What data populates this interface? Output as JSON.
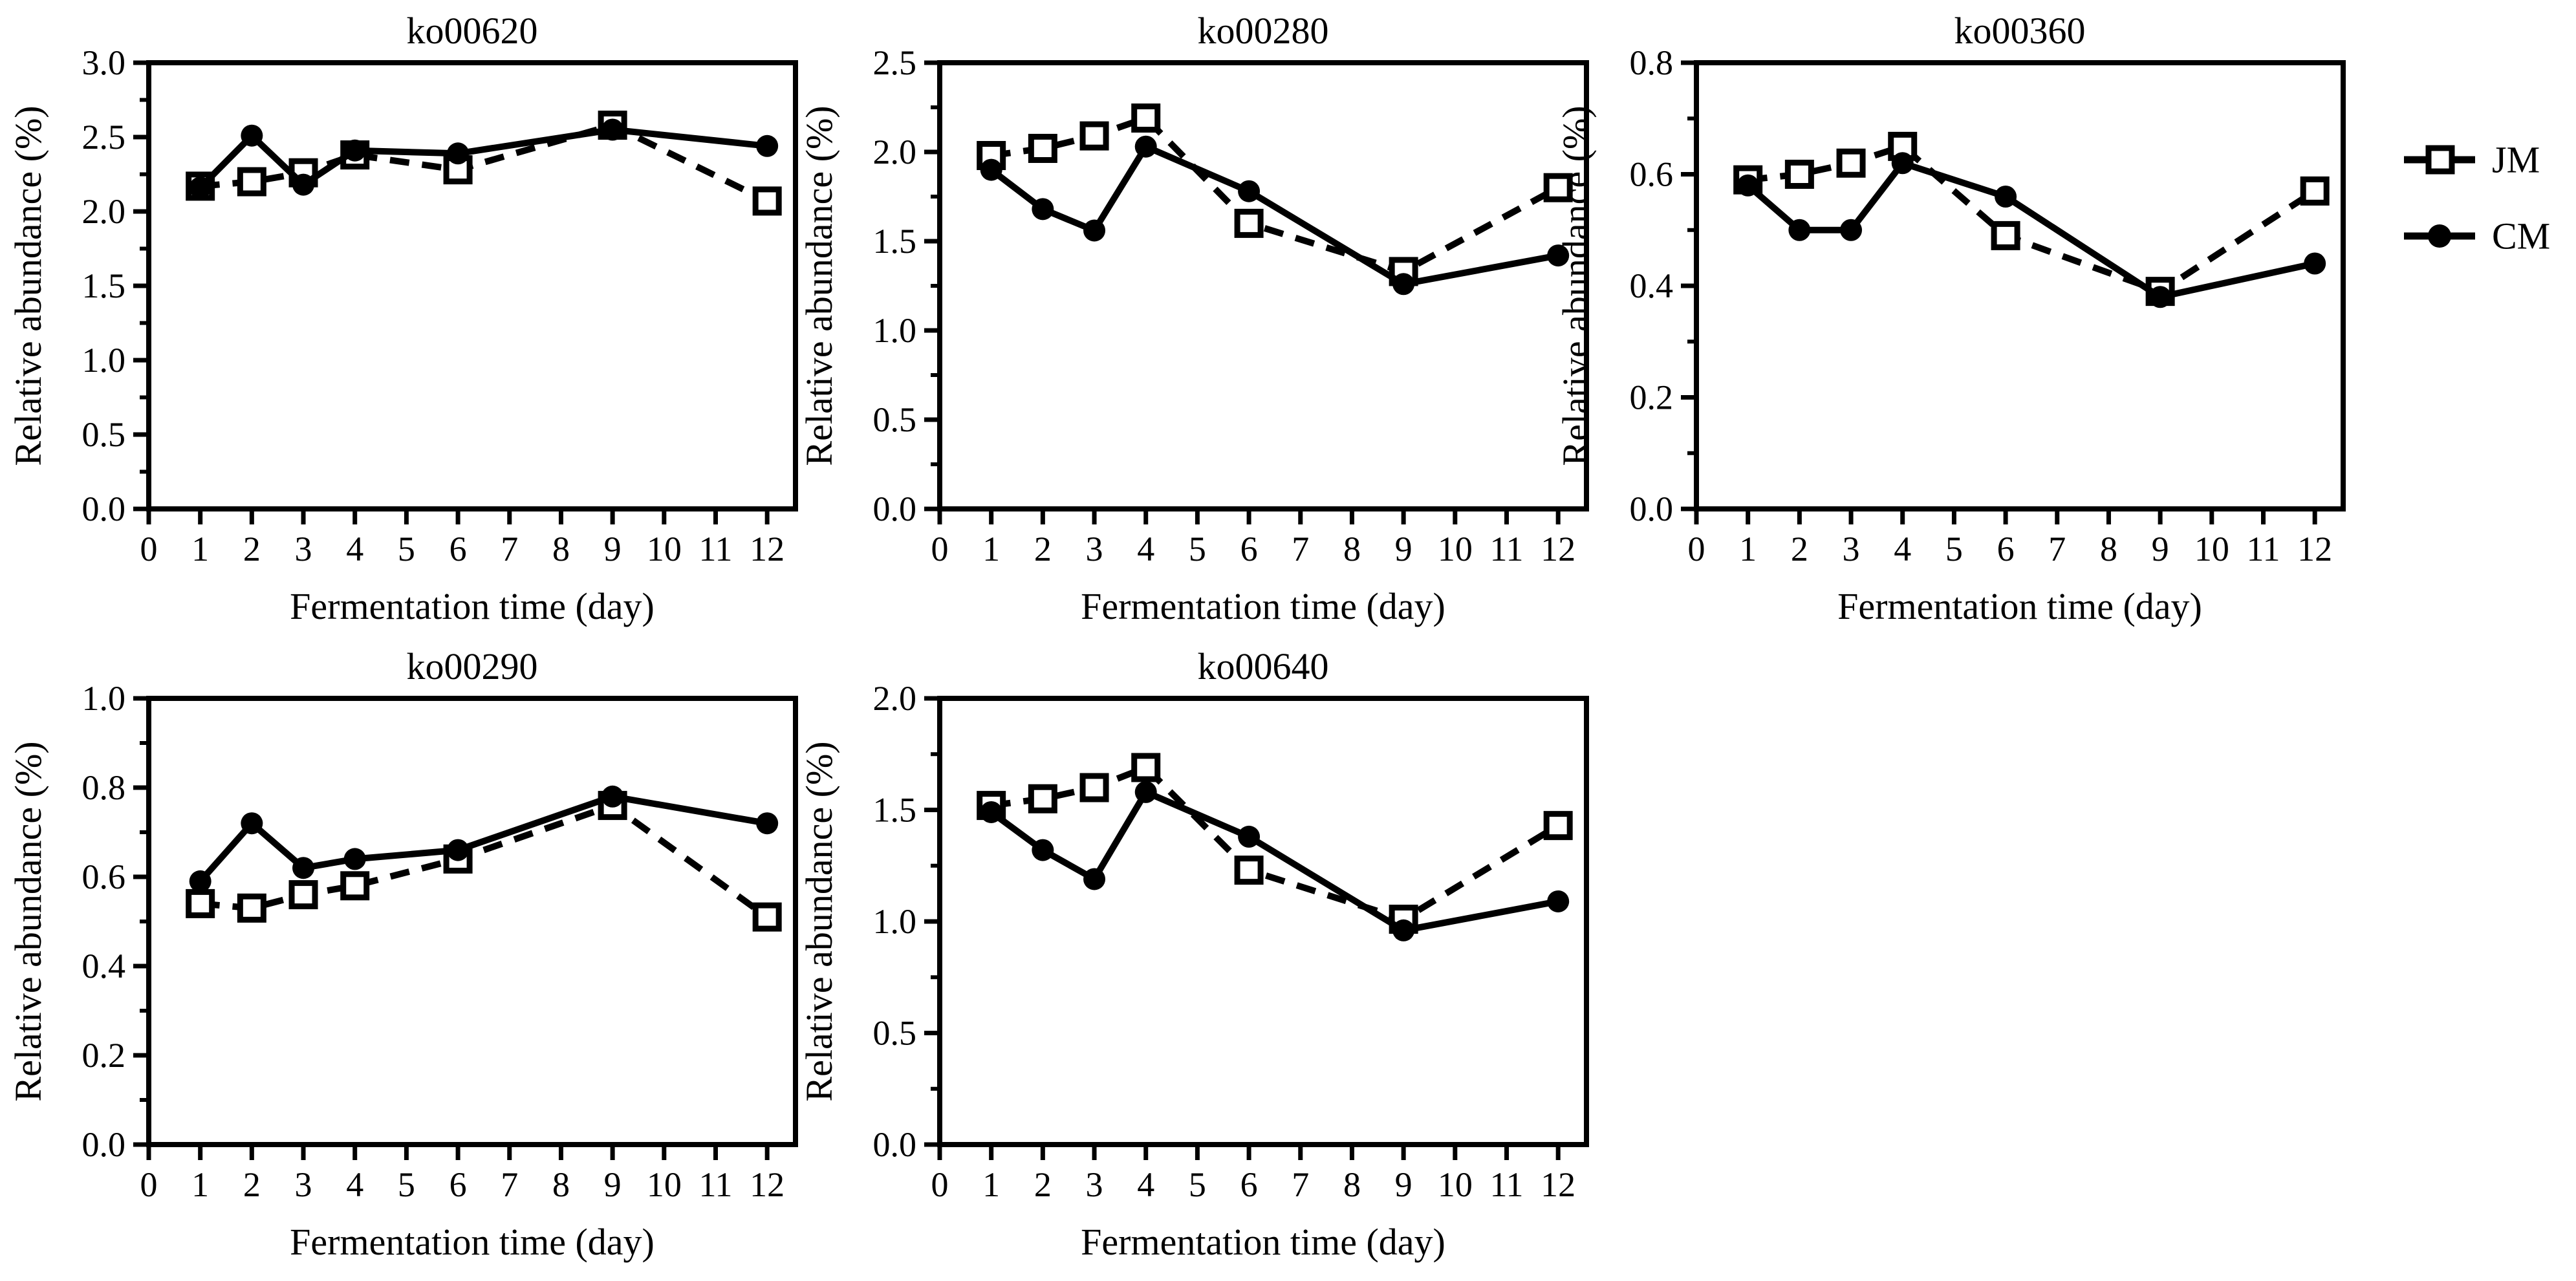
{
  "figure": {
    "background": "#ffffff",
    "ink_color": "#000000"
  },
  "legend": {
    "items": [
      {
        "label": "JM",
        "marker": "open-square",
        "line_style": "dashed"
      },
      {
        "label": "CM",
        "marker": "filled-circle",
        "line_style": "solid"
      }
    ]
  },
  "chart_data": [
    {
      "type": "line",
      "title": "ko00620",
      "xlabel": "Fermentation time (day)",
      "ylabel": "Relative abundance (%)",
      "x": [
        1,
        2,
        3,
        4,
        6,
        9,
        12
      ],
      "xticks": [
        0,
        1,
        2,
        3,
        4,
        5,
        6,
        7,
        8,
        9,
        10,
        11,
        12
      ],
      "xlim": [
        0,
        12.55
      ],
      "ylim": [
        0,
        3.0
      ],
      "ytick_step": 0.5,
      "grid": false,
      "series": [
        {
          "name": "JM",
          "marker": "open-square",
          "line_style": "dashed",
          "values": [
            2.17,
            2.2,
            2.26,
            2.38,
            2.28,
            2.58,
            2.07
          ]
        },
        {
          "name": "CM",
          "marker": "filled-circle",
          "line_style": "solid",
          "values": [
            2.16,
            2.51,
            2.18,
            2.41,
            2.39,
            2.55,
            2.44
          ]
        }
      ]
    },
    {
      "type": "line",
      "title": "ko00280",
      "xlabel": "Fermentation time (day)",
      "ylabel": "Relative abundance (%)",
      "x": [
        1,
        2,
        3,
        4,
        6,
        9,
        12
      ],
      "xticks": [
        0,
        1,
        2,
        3,
        4,
        5,
        6,
        7,
        8,
        9,
        10,
        11,
        12
      ],
      "xlim": [
        0,
        12.55
      ],
      "ylim": [
        0,
        2.5
      ],
      "ytick_step": 0.5,
      "grid": false,
      "series": [
        {
          "name": "JM",
          "marker": "open-square",
          "line_style": "dashed",
          "values": [
            1.98,
            2.02,
            2.09,
            2.19,
            1.6,
            1.33,
            1.8
          ]
        },
        {
          "name": "CM",
          "marker": "filled-circle",
          "line_style": "solid",
          "values": [
            1.9,
            1.68,
            1.56,
            2.03,
            1.78,
            1.26,
            1.42
          ]
        }
      ]
    },
    {
      "type": "line",
      "title": "ko00360",
      "xlabel": "Fermentation time (day)",
      "ylabel": "Relative abundance (%)",
      "x": [
        1,
        2,
        3,
        4,
        6,
        9,
        12
      ],
      "xticks": [
        0,
        1,
        2,
        3,
        4,
        5,
        6,
        7,
        8,
        9,
        10,
        11,
        12
      ],
      "xlim": [
        0,
        12.55
      ],
      "ylim": [
        0,
        0.8
      ],
      "ytick_step": 0.2,
      "grid": false,
      "series": [
        {
          "name": "JM",
          "marker": "open-square",
          "line_style": "dashed",
          "values": [
            0.59,
            0.6,
            0.62,
            0.65,
            0.49,
            0.39,
            0.57
          ]
        },
        {
          "name": "CM",
          "marker": "filled-circle",
          "line_style": "solid",
          "values": [
            0.58,
            0.5,
            0.5,
            0.62,
            0.56,
            0.38,
            0.44
          ]
        }
      ]
    },
    {
      "type": "line",
      "title": "ko00290",
      "xlabel": "Fermentation time (day)",
      "ylabel": "Relative abundance (%)",
      "x": [
        1,
        2,
        3,
        4,
        6,
        9,
        12
      ],
      "xticks": [
        0,
        1,
        2,
        3,
        4,
        5,
        6,
        7,
        8,
        9,
        10,
        11,
        12
      ],
      "xlim": [
        0,
        12.55
      ],
      "ylim": [
        0,
        1.0
      ],
      "ytick_step": 0.2,
      "grid": false,
      "series": [
        {
          "name": "JM",
          "marker": "open-square",
          "line_style": "dashed",
          "values": [
            0.54,
            0.53,
            0.56,
            0.58,
            0.64,
            0.76,
            0.51
          ]
        },
        {
          "name": "CM",
          "marker": "filled-circle",
          "line_style": "solid",
          "values": [
            0.59,
            0.72,
            0.62,
            0.64,
            0.66,
            0.78,
            0.72
          ]
        }
      ]
    },
    {
      "type": "line",
      "title": "ko00640",
      "xlabel": "Fermentation time (day)",
      "ylabel": "Relative abundance (%)",
      "x": [
        1,
        2,
        3,
        4,
        6,
        9,
        12
      ],
      "xticks": [
        0,
        1,
        2,
        3,
        4,
        5,
        6,
        7,
        8,
        9,
        10,
        11,
        12
      ],
      "xlim": [
        0,
        12.55
      ],
      "ylim": [
        0,
        2.0
      ],
      "ytick_step": 0.5,
      "grid": false,
      "series": [
        {
          "name": "JM",
          "marker": "open-square",
          "line_style": "dashed",
          "values": [
            1.52,
            1.55,
            1.6,
            1.69,
            1.23,
            1.01,
            1.43
          ]
        },
        {
          "name": "CM",
          "marker": "filled-circle",
          "line_style": "solid",
          "values": [
            1.49,
            1.32,
            1.19,
            1.58,
            1.38,
            0.96,
            1.09
          ]
        }
      ]
    }
  ]
}
